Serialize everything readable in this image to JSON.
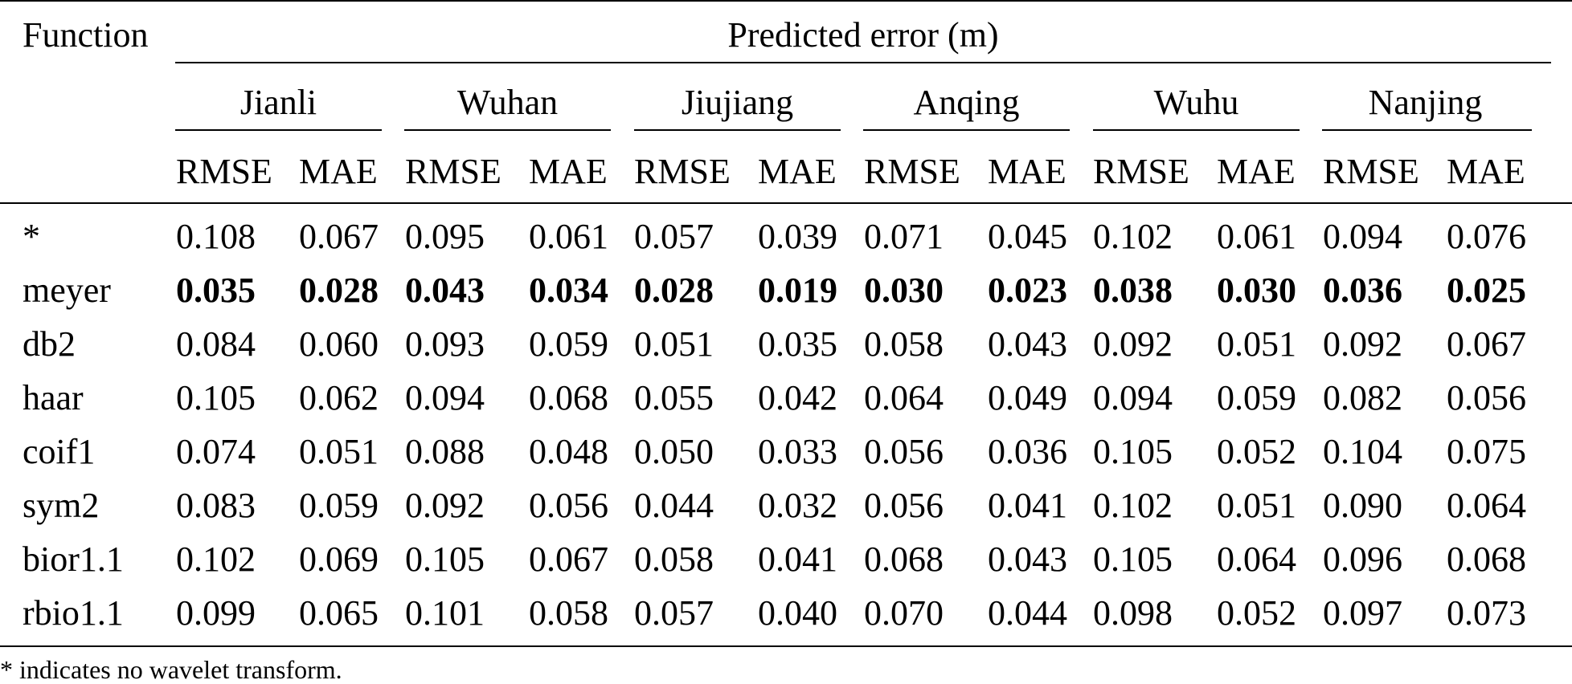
{
  "table": {
    "function_header": "Function",
    "group_header": "Predicted error (m)",
    "stations": [
      "Jianli",
      "Wuhan",
      "Jiujiang",
      "Anqing",
      "Wuhu",
      "Nanjing"
    ],
    "metrics": [
      "RMSE",
      "MAE"
    ],
    "rows": [
      {
        "label": "*",
        "bold": false,
        "values": [
          "0.108",
          "0.067",
          "0.095",
          "0.061",
          "0.057",
          "0.039",
          "0.071",
          "0.045",
          "0.102",
          "0.061",
          "0.094",
          "0.076"
        ]
      },
      {
        "label": "meyer",
        "bold": true,
        "values": [
          "0.035",
          "0.028",
          "0.043",
          "0.034",
          "0.028",
          "0.019",
          "0.030",
          "0.023",
          "0.038",
          "0.030",
          "0.036",
          "0.025"
        ]
      },
      {
        "label": "db2",
        "bold": false,
        "values": [
          "0.084",
          "0.060",
          "0.093",
          "0.059",
          "0.051",
          "0.035",
          "0.058",
          "0.043",
          "0.092",
          "0.051",
          "0.092",
          "0.067"
        ]
      },
      {
        "label": "haar",
        "bold": false,
        "values": [
          "0.105",
          "0.062",
          "0.094",
          "0.068",
          "0.055",
          "0.042",
          "0.064",
          "0.049",
          "0.094",
          "0.059",
          "0.082",
          "0.056"
        ]
      },
      {
        "label": "coif1",
        "bold": false,
        "values": [
          "0.074",
          "0.051",
          "0.088",
          "0.048",
          "0.050",
          "0.033",
          "0.056",
          "0.036",
          "0.105",
          "0.052",
          "0.104",
          "0.075"
        ]
      },
      {
        "label": "sym2",
        "bold": false,
        "values": [
          "0.083",
          "0.059",
          "0.092",
          "0.056",
          "0.044",
          "0.032",
          "0.056",
          "0.041",
          "0.102",
          "0.051",
          "0.090",
          "0.064"
        ]
      },
      {
        "label": "bior1.1",
        "bold": false,
        "values": [
          "0.102",
          "0.069",
          "0.105",
          "0.067",
          "0.058",
          "0.041",
          "0.068",
          "0.043",
          "0.105",
          "0.064",
          "0.096",
          "0.068"
        ]
      },
      {
        "label": "rbio1.1",
        "bold": false,
        "values": [
          "0.099",
          "0.065",
          "0.101",
          "0.058",
          "0.057",
          "0.040",
          "0.070",
          "0.044",
          "0.098",
          "0.052",
          "0.097",
          "0.073"
        ]
      }
    ],
    "footnote": "* indicates no wavelet transform."
  }
}
